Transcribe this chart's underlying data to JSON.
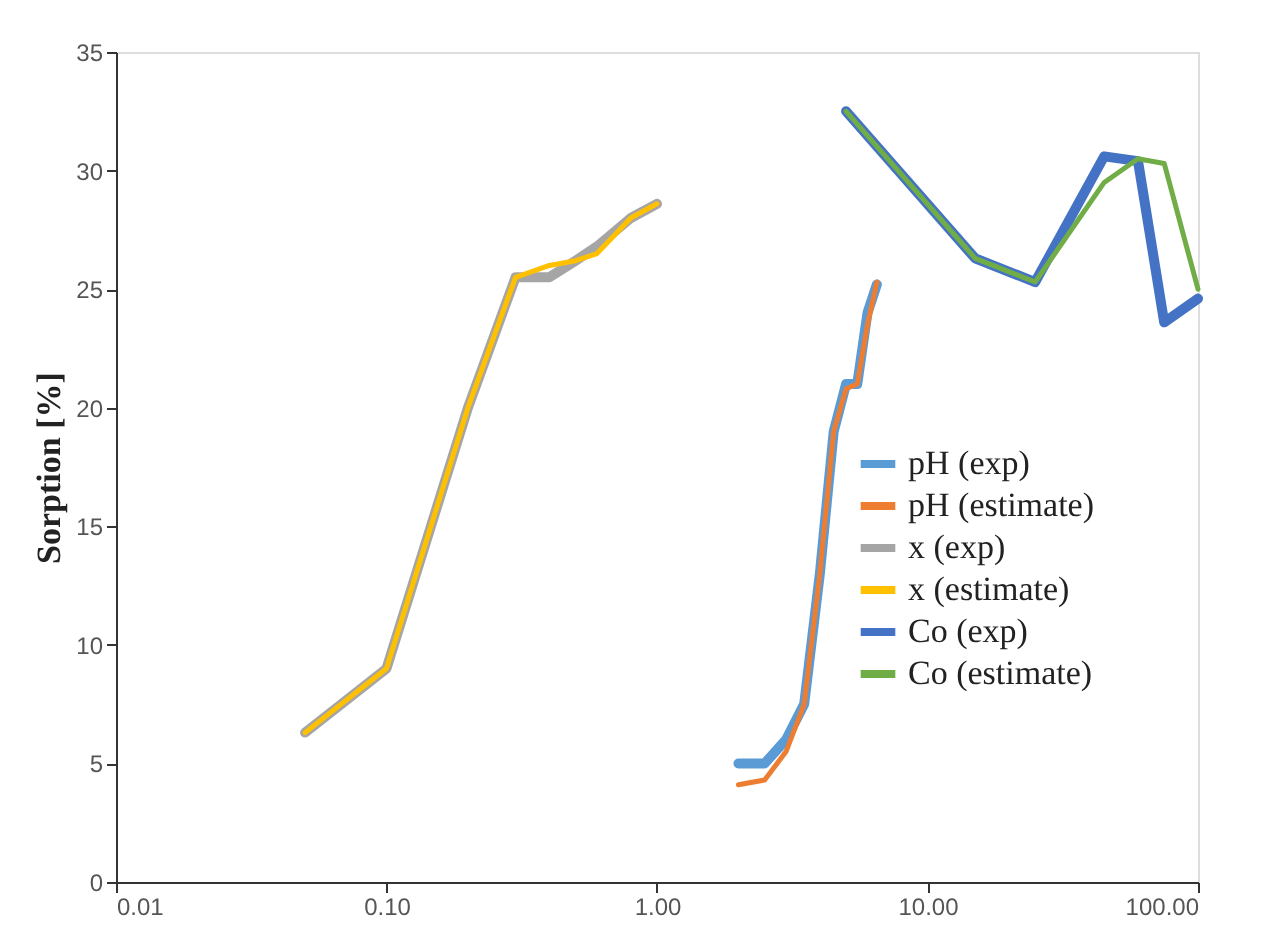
{
  "chart_data": {
    "type": "line",
    "ylabel": "Sorption [%]",
    "log": "x",
    "xlim": [
      0.01,
      100
    ],
    "xticks": [
      0.01,
      {
        "value": 0.1,
        "label": "0.10"
      },
      {
        "value": 1,
        "label": "1.00"
      },
      {
        "value": 10,
        "label": "10.00"
      },
      {
        "value": 100,
        "label": "100.00"
      }
    ],
    "ylim": [
      0,
      35
    ],
    "yticks": [
      0,
      5,
      10,
      15,
      20,
      25,
      30,
      35
    ],
    "grid": false,
    "legend": "right",
    "marker": "none",
    "line_style": "solid",
    "series": [
      {
        "name": "pH (exp)",
        "color": "#5b9bd5",
        "x": [
          2,
          2.5,
          3,
          3.5,
          4,
          4.5,
          5,
          5.5,
          6,
          6.5
        ],
        "values": [
          5,
          5,
          6,
          7.5,
          13,
          19,
          21,
          21,
          24,
          25.2
        ]
      },
      {
        "name": "pH (estimate)",
        "color": "#ed7d31",
        "x": [
          2,
          2.5,
          3,
          3.5,
          4,
          4.5,
          5,
          5.5,
          6,
          6.5
        ],
        "values": [
          4.1,
          4.3,
          5.5,
          7.5,
          13,
          19,
          20.8,
          21,
          23.5,
          25.3
        ]
      },
      {
        "name": "x (exp)",
        "color": "#a5a5a5",
        "x": [
          0.05,
          0.1,
          0.2,
          0.3,
          0.4,
          0.5,
          0.6,
          0.8,
          1
        ],
        "values": [
          6.3,
          9,
          20,
          25.5,
          25.5,
          26.2,
          26.8,
          28,
          28.6
        ]
      },
      {
        "name": "x (estimate)",
        "color": "#ffc000",
        "x": [
          0.05,
          0.1,
          0.2,
          0.3,
          0.4,
          0.5,
          0.6,
          0.8,
          1
        ],
        "values": [
          6.3,
          9,
          20,
          25.5,
          26,
          26.2,
          26.5,
          28,
          28.6
        ]
      },
      {
        "name": "Co (exp)",
        "color": "#4472c4",
        "x": [
          5,
          15,
          25,
          45,
          60,
          75,
          100
        ],
        "values": [
          32.5,
          26.3,
          25.3,
          30.6,
          30.4,
          23.6,
          24.6
        ]
      },
      {
        "name": "Co (estimate)",
        "color": "#70ad47",
        "x": [
          5,
          15,
          25,
          45,
          60,
          75,
          100
        ],
        "values": [
          32.5,
          26.3,
          25.3,
          29.5,
          30.5,
          30.3,
          25
        ]
      }
    ]
  }
}
